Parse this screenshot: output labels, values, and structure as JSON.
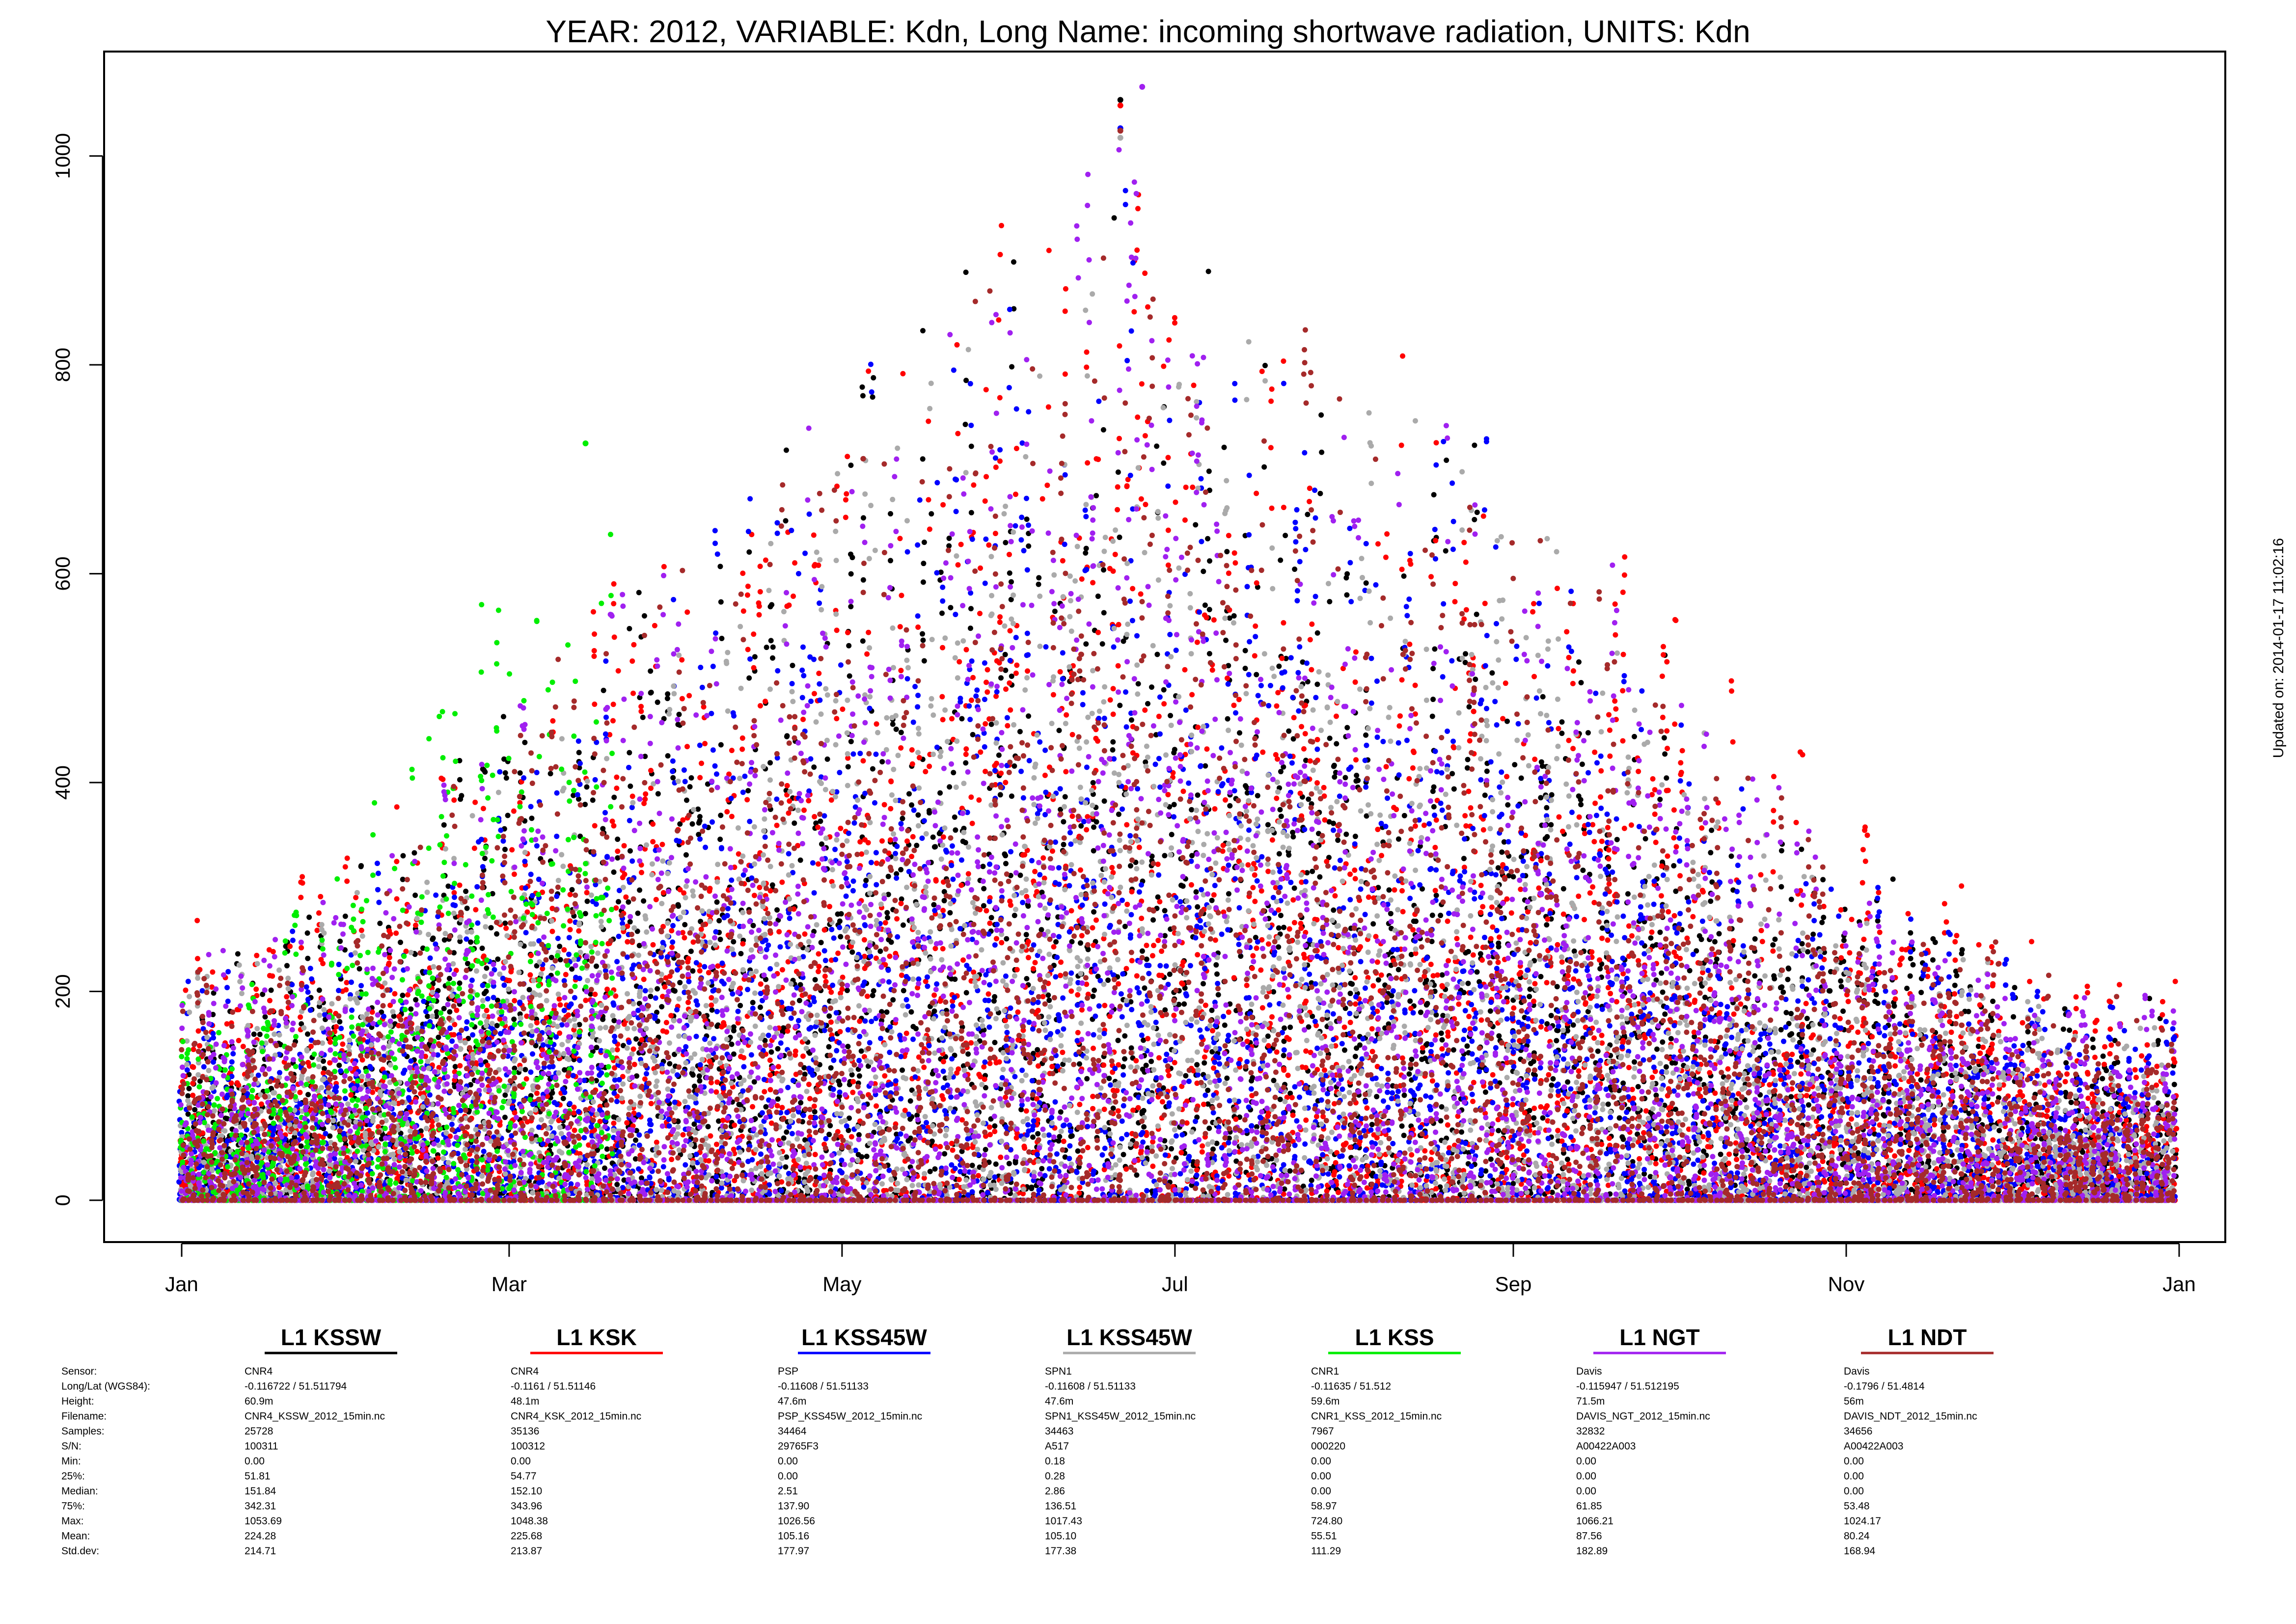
{
  "chart_data": {
    "type": "scatter",
    "title": "YEAR: 2012, VARIABLE: Kdn, Long Name: incoming  shortwave  radiation, UNITS: Kdn",
    "xlabel": "",
    "ylabel": "",
    "x_axis": {
      "type": "date",
      "range": [
        "2012-01-01",
        "2013-01-01"
      ],
      "ticks": [
        {
          "label": "Jan",
          "date": "2012-01-01"
        },
        {
          "label": "Mar",
          "date": "2012-03-01"
        },
        {
          "label": "May",
          "date": "2012-05-01"
        },
        {
          "label": "Jul",
          "date": "2012-07-01"
        },
        {
          "label": "Sep",
          "date": "2012-09-01"
        },
        {
          "label": "Nov",
          "date": "2012-11-01"
        },
        {
          "label": "Jan",
          "date": "2013-01-01"
        }
      ]
    },
    "y_axis": {
      "range": [
        -40,
        1100
      ],
      "ticks": [
        0,
        200,
        400,
        600,
        800,
        1000
      ]
    },
    "grid": false,
    "updated_text": "Updated on: 2014-01-17 11:02:16",
    "series": [
      {
        "name": "L1 KSSW",
        "color": "#000000",
        "end": "2012-12-31",
        "days": [
          "2012-01-10",
          "2012-02-01",
          "2012-03-01",
          "2012-04-01",
          "2012-05-01",
          "2012-06-10",
          "2012-06-21",
          "2012-07-15",
          "2012-08-15",
          "2012-09-15",
          "2012-10-15",
          "2012-11-15",
          "2012-12-15"
        ],
        "maxima": [
          260,
          340,
          520,
          680,
          840,
          980,
          1053.69,
          900,
          800,
          680,
          430,
          300,
          200
        ]
      },
      {
        "name": "L1 KSK",
        "color": "#ff0000",
        "end": "2012-12-31",
        "days": [
          "2012-01-10",
          "2012-02-01",
          "2012-03-01",
          "2012-03-25",
          "2012-04-15",
          "2012-05-15",
          "2012-06-10",
          "2012-06-21",
          "2012-07-20",
          "2012-08-20",
          "2012-09-20",
          "2012-10-15",
          "2012-11-15",
          "2012-12-15"
        ],
        "maxima": [
          280,
          360,
          520,
          700,
          760,
          900,
          1000,
          1048.38,
          880,
          860,
          700,
          500,
          340,
          230
        ]
      },
      {
        "name": "L1 KSS45W",
        "color": "#0000ff",
        "end": "2012-12-31",
        "days": [
          "2012-01-10",
          "2012-02-01",
          "2012-03-01",
          "2012-04-01",
          "2012-05-01",
          "2012-06-10",
          "2012-06-21",
          "2012-07-15",
          "2012-08-15",
          "2012-09-15",
          "2012-10-15",
          "2012-11-15",
          "2012-12-15"
        ],
        "maxima": [
          240,
          320,
          480,
          650,
          820,
          960,
          1026.56,
          880,
          780,
          660,
          420,
          300,
          200
        ]
      },
      {
        "name": "L1 KSS45W",
        "color": "#aaaaaa",
        "end": "2012-12-31",
        "days": [
          "2012-01-10",
          "2012-02-01",
          "2012-03-01",
          "2012-04-01",
          "2012-05-01",
          "2012-06-10",
          "2012-06-21",
          "2012-07-15",
          "2012-08-15",
          "2012-09-15",
          "2012-10-15",
          "2012-11-15",
          "2012-12-15"
        ],
        "maxima": [
          230,
          310,
          470,
          640,
          800,
          950,
          1017.43,
          870,
          770,
          650,
          410,
          290,
          190
        ]
      },
      {
        "name": "L1 KSS",
        "color": "#00ee00",
        "end": "2012-03-20",
        "days": [
          "2012-01-05",
          "2012-01-20",
          "2012-02-05",
          "2012-02-20",
          "2012-03-05",
          "2012-03-15"
        ],
        "maxima": [
          230,
          300,
          420,
          560,
          640,
          724.8
        ]
      },
      {
        "name": "L1 NGT",
        "color": "#a020f0",
        "end": "2012-12-31",
        "days": [
          "2012-01-10",
          "2012-02-01",
          "2012-03-01",
          "2012-04-01",
          "2012-05-01",
          "2012-06-10",
          "2012-06-25",
          "2012-07-15",
          "2012-08-15",
          "2012-09-15",
          "2012-10-15",
          "2012-11-15",
          "2012-12-15"
        ],
        "maxima": [
          250,
          330,
          500,
          670,
          860,
          1000,
          1066.21,
          900,
          820,
          700,
          440,
          310,
          210
        ]
      },
      {
        "name": "L1 NDT",
        "color": "#a52a2a",
        "end": "2012-12-31",
        "days": [
          "2012-01-10",
          "2012-02-01",
          "2012-03-01",
          "2012-04-01",
          "2012-05-01",
          "2012-06-10",
          "2012-06-21",
          "2012-07-15",
          "2012-08-15",
          "2012-09-15",
          "2012-10-15",
          "2012-11-15",
          "2012-12-15"
        ],
        "maxima": [
          240,
          320,
          500,
          660,
          830,
          980,
          1024.17,
          880,
          790,
          670,
          420,
          300,
          200
        ]
      }
    ],
    "stats_table": {
      "row_labels": [
        "Sensor:",
        "Long/Lat (WGS84):",
        "Height:",
        "Filename:",
        "Samples:",
        "S/N:",
        "Min:",
        "25%:",
        "Median:",
        "75%:",
        "Max:",
        "Mean:",
        "Std.dev:"
      ],
      "columns": [
        {
          "name": "L1 KSSW",
          "color": "#000000",
          "values": [
            "CNR4",
            "-0.116722 / 51.511794",
            "60.9m",
            "CNR4_KSSW_2012_15min.nc",
            "25728",
            "100311",
            "0.00",
            "51.81",
            "151.84",
            "342.31",
            "1053.69",
            "224.28",
            "214.71"
          ]
        },
        {
          "name": "L1 KSK",
          "color": "#ff0000",
          "values": [
            "CNR4",
            "-0.1161 / 51.51146",
            "48.1m",
            "CNR4_KSK_2012_15min.nc",
            "35136",
            "100312",
            "0.00",
            "54.77",
            "152.10",
            "343.96",
            "1048.38",
            "225.68",
            "213.87"
          ]
        },
        {
          "name": "L1 KSS45W",
          "color": "#0000ff",
          "values": [
            "PSP",
            "-0.11608 / 51.51133",
            "47.6m",
            "PSP_KSS45W_2012_15min.nc",
            "34464",
            "29765F3",
            "0.00",
            "0.00",
            "2.51",
            "137.90",
            "1026.56",
            "105.16",
            "177.97"
          ]
        },
        {
          "name": "L1 KSS45W",
          "color": "#aaaaaa",
          "values": [
            "SPN1",
            "-0.11608 / 51.51133",
            "47.6m",
            "SPN1_KSS45W_2012_15min.nc",
            "34463",
            "A517",
            "0.18",
            "0.28",
            "2.86",
            "136.51",
            "1017.43",
            "105.10",
            "177.38"
          ]
        },
        {
          "name": "L1 KSS",
          "color": "#00ee00",
          "values": [
            "CNR1",
            "-0.11635 / 51.512",
            "59.6m",
            "CNR1_KSS_2012_15min.nc",
            "7967",
            "000220",
            "0.00",
            "0.00",
            "0.00",
            "58.97",
            "724.80",
            "55.51",
            "111.29"
          ]
        },
        {
          "name": "L1 NGT",
          "color": "#a020f0",
          "values": [
            "Davis",
            "-0.115947 / 51.512195",
            "71.5m",
            "DAVIS_NGT_2012_15min.nc",
            "32832",
            "A00422A003",
            "0.00",
            "0.00",
            "0.00",
            "61.85",
            "1066.21",
            "87.56",
            "182.89"
          ]
        },
        {
          "name": "L1 NDT",
          "color": "#a52a2a",
          "values": [
            "Davis",
            "-0.1796 / 51.4814",
            "56m",
            "DAVIS_NDT_2012_15min.nc",
            "34656",
            "A00422A003",
            "0.00",
            "0.00",
            "0.00",
            "53.48",
            "1024.17",
            "80.24",
            "168.94"
          ]
        }
      ]
    }
  }
}
